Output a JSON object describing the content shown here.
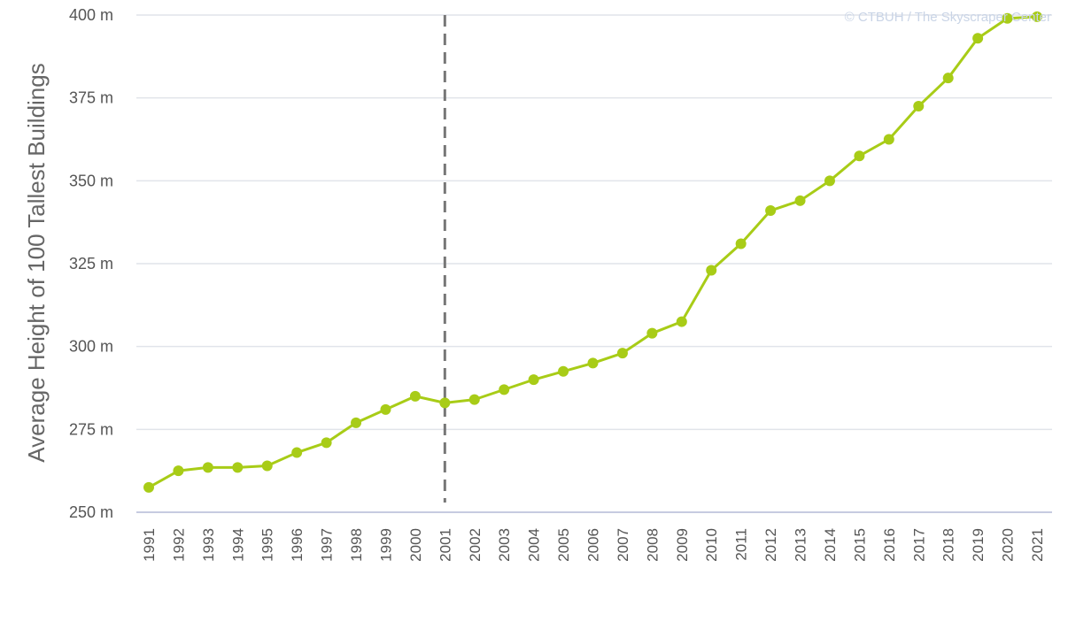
{
  "chart_data": {
    "type": "line",
    "title": "",
    "xlabel": "",
    "ylabel": "Average Height of 100 Tallest Buildings",
    "credit": "© CTBUH / The Skyscraper Center",
    "y_unit": "m",
    "ylim": [
      250,
      400
    ],
    "y_ticks": [
      250,
      275,
      300,
      325,
      350,
      375,
      400
    ],
    "y_tick_labels": [
      "250 m",
      "275 m",
      "300 m",
      "325 m",
      "350 m",
      "375 m",
      "400 m"
    ],
    "grid": true,
    "legend": "none",
    "line_color": "#a8cc17",
    "reference_line": {
      "x": "2001",
      "style": "dashed",
      "color": "#777777"
    },
    "categories": [
      "1991",
      "1992",
      "1993",
      "1994",
      "1995",
      "1996",
      "1997",
      "1998",
      "1999",
      "2000",
      "2001",
      "2002",
      "2003",
      "2004",
      "2005",
      "2006",
      "2007",
      "2008",
      "2009",
      "2010",
      "2011",
      "2012",
      "2013",
      "2014",
      "2015",
      "2016",
      "2017",
      "2018",
      "2019",
      "2020",
      "2021"
    ],
    "series": [
      {
        "values": [
          257.5,
          262.5,
          263.5,
          263.5,
          264,
          268,
          271,
          277,
          281,
          285,
          283,
          284,
          287,
          290,
          292.5,
          295,
          298,
          304,
          307.5,
          323,
          331,
          341,
          344,
          350,
          357.5,
          362.5,
          372.5,
          381,
          393,
          399,
          399.5
        ]
      }
    ]
  }
}
